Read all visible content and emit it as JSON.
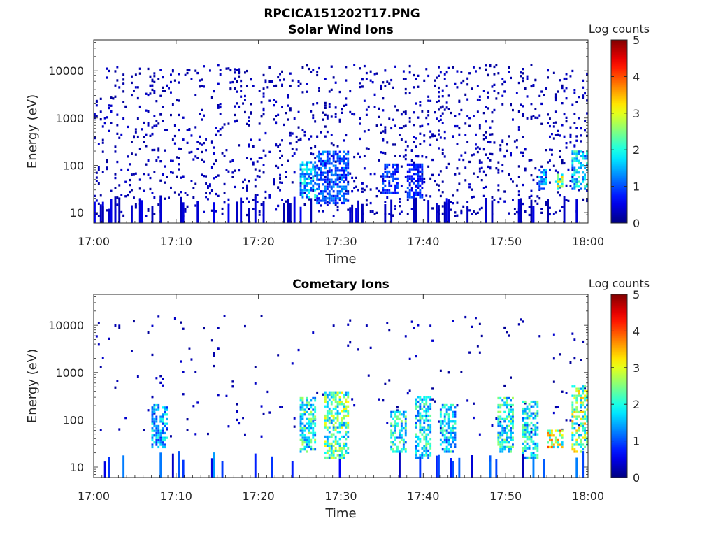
{
  "figure_title": "RPCICA151202T17.PNG",
  "chart_data": [
    {
      "type": "heatmap",
      "title": "Solar Wind Ions",
      "xlabel": "Time",
      "ylabel": "Energy (eV)",
      "x_ticks": [
        "17:00",
        "17:10",
        "17:20",
        "17:30",
        "17:40",
        "17:50",
        "18:00"
      ],
      "xlim": [
        "17:00",
        "18:00"
      ],
      "y_scale": "log",
      "y_ticks": [
        "10",
        "100",
        "1000",
        "10000"
      ],
      "ylim": [
        6,
        45000
      ],
      "colorbar": {
        "label": "Log counts",
        "ticks": [
          "0",
          "1",
          "2",
          "3",
          "4",
          "5"
        ],
        "range": [
          0,
          5
        ],
        "colormap": "jet"
      },
      "dense_regions": [
        {
          "t_start": "17:25",
          "t_end": "17:27",
          "e_low": 20,
          "e_high": 120,
          "log_counts": 1.8
        },
        {
          "t_start": "17:27",
          "t_end": "17:31",
          "e_low": 15,
          "e_high": 200,
          "log_counts": 1.2
        },
        {
          "t_start": "17:35",
          "t_end": "17:37",
          "e_low": 25,
          "e_high": 100,
          "log_counts": 1.0
        },
        {
          "t_start": "17:38",
          "t_end": "17:40",
          "e_low": 20,
          "e_high": 100,
          "log_counts": 0.9
        },
        {
          "t_start": "17:54",
          "t_end": "17:55",
          "e_low": 30,
          "e_high": 80,
          "log_counts": 1.6
        },
        {
          "t_start": "17:56",
          "t_end": "17:57",
          "e_low": 30,
          "e_high": 60,
          "log_counts": 2.8
        },
        {
          "t_start": "17:58",
          "t_end": "18:00",
          "e_low": 30,
          "e_high": 200,
          "log_counts": 2.0
        }
      ]
    },
    {
      "type": "heatmap",
      "title": "Cometary Ions",
      "xlabel": "Time",
      "ylabel": "Energy (eV)",
      "x_ticks": [
        "17:00",
        "17:10",
        "17:20",
        "17:30",
        "17:40",
        "17:50",
        "18:00"
      ],
      "xlim": [
        "17:00",
        "18:00"
      ],
      "y_scale": "log",
      "y_ticks": [
        "10",
        "100",
        "1000",
        "10000"
      ],
      "ylim": [
        6,
        45000
      ],
      "colorbar": {
        "label": "Log counts",
        "ticks": [
          "0",
          "1",
          "2",
          "3",
          "4",
          "5"
        ],
        "range": [
          0,
          5
        ],
        "colormap": "jet"
      },
      "dense_regions": [
        {
          "t_start": "17:07",
          "t_end": "17:09",
          "e_low": 25,
          "e_high": 200,
          "log_counts": 1.8
        },
        {
          "t_start": "17:25",
          "t_end": "17:27",
          "e_low": 20,
          "e_high": 300,
          "log_counts": 2.4
        },
        {
          "t_start": "17:28",
          "t_end": "17:31",
          "e_low": 15,
          "e_high": 400,
          "log_counts": 2.7
        },
        {
          "t_start": "17:36",
          "t_end": "17:38",
          "e_low": 20,
          "e_high": 150,
          "log_counts": 2.2
        },
        {
          "t_start": "17:39",
          "t_end": "17:41",
          "e_low": 15,
          "e_high": 300,
          "log_counts": 2.1
        },
        {
          "t_start": "17:42",
          "t_end": "17:44",
          "e_low": 20,
          "e_high": 200,
          "log_counts": 2.0
        },
        {
          "t_start": "17:49",
          "t_end": "17:51",
          "e_low": 20,
          "e_high": 300,
          "log_counts": 2.3
        },
        {
          "t_start": "17:52",
          "t_end": "17:54",
          "e_low": 15,
          "e_high": 250,
          "log_counts": 2.2
        },
        {
          "t_start": "17:55",
          "t_end": "17:57",
          "e_low": 25,
          "e_high": 60,
          "log_counts": 3.5
        },
        {
          "t_start": "17:58",
          "t_end": "18:00",
          "e_low": 20,
          "e_high": 500,
          "log_counts": 3.0
        }
      ]
    }
  ]
}
